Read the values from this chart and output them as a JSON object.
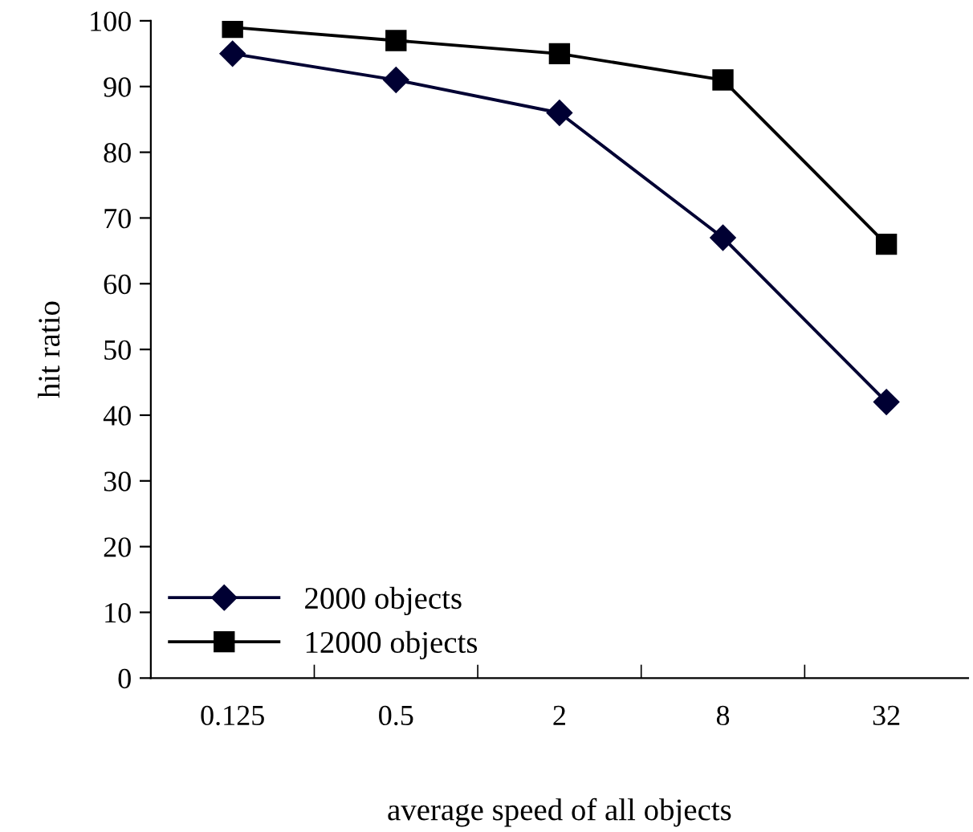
{
  "chart_data": {
    "type": "line",
    "xlabel": "average speed of all objects",
    "ylabel": "hit ratio",
    "categories": [
      "0.125",
      "0.5",
      "2",
      "8",
      "32"
    ],
    "series": [
      {
        "name": "2000 objects",
        "color": "#000033",
        "marker": "diamond",
        "values": [
          95,
          91,
          86,
          67,
          42
        ]
      },
      {
        "name": "12000 objects",
        "color": "#000000",
        "marker": "square",
        "values": [
          99,
          97,
          95,
          91,
          66
        ]
      }
    ],
    "ylim": [
      0,
      100
    ],
    "yticks": [
      0,
      10,
      20,
      30,
      40,
      50,
      60,
      70,
      80,
      90,
      100
    ],
    "grid": false,
    "legend": "bottom left",
    "line_style": "solid"
  }
}
